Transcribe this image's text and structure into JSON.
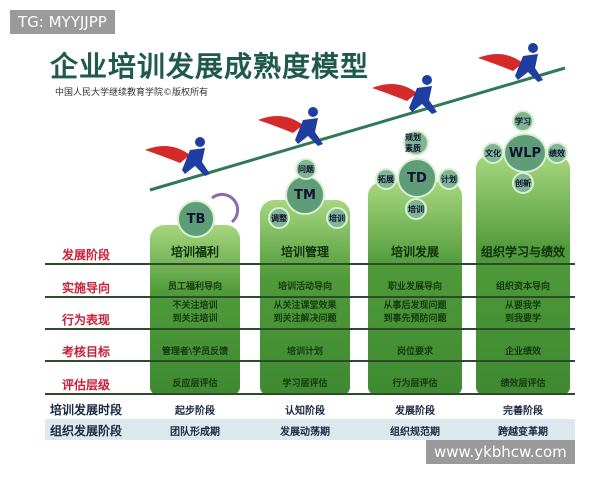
{
  "watermarks": {
    "top_left": "TG: MYYJJPP",
    "bottom_right": "www.ykbhcw.com"
  },
  "title": "企业培训发展成熟度模型",
  "subtitle": "中国人民大学继续教育学院©版权所有",
  "row_labels": [
    "发展阶段",
    "实施导向",
    "行为表现",
    "考核目标",
    "评估层级"
  ],
  "bottom_labels": [
    "培训发展时段",
    "组织发展阶段"
  ],
  "columns": [
    {
      "badge": "TB",
      "stage": "培训福利",
      "orientation": "员工福利导向",
      "behavior": [
        "不关注培训",
        "到关注培训"
      ],
      "target": "管理者\\学员反馈",
      "evaluation": "反应层评估",
      "period": "起步阶段",
      "org_stage": "团队形成期"
    },
    {
      "badge": "TM",
      "satellites": [
        "问题",
        "调整",
        "培训"
      ],
      "stage": "培训管理",
      "orientation": "培训活动导向",
      "behavior": [
        "从关注课堂效果",
        "到关注解决问题"
      ],
      "target": "培训计划",
      "evaluation": "学习层评估",
      "period": "认知阶段",
      "org_stage": "发展动荡期"
    },
    {
      "badge": "TD",
      "satellites": [
        "规划素质",
        "拓展",
        "计划",
        "培训"
      ],
      "stage": "培训发展",
      "orientation": "职业发展导向",
      "behavior": [
        "从事后发现问题",
        "到事先预防问题"
      ],
      "target": "岗位要求",
      "evaluation": "行为层评估",
      "period": "发展阶段",
      "org_stage": "组织规范期"
    },
    {
      "badge": "WLP",
      "satellites": [
        "学习",
        "文化",
        "绩效",
        "创新"
      ],
      "stage": "组织学习与绩效",
      "orientation": "组织资本导向",
      "behavior": [
        "从要我学",
        "到我要学"
      ],
      "target": "企业绩效",
      "evaluation": "绩效层评估",
      "period": "完善阶段",
      "org_stage": "跨越变革期"
    }
  ],
  "colors": {
    "title": "#1f5a4a",
    "row_label": "#c8203a",
    "column_green": "#4f9a3a",
    "runner_blue": "#1f3fa0",
    "cape_red": "#d42a2a"
  }
}
